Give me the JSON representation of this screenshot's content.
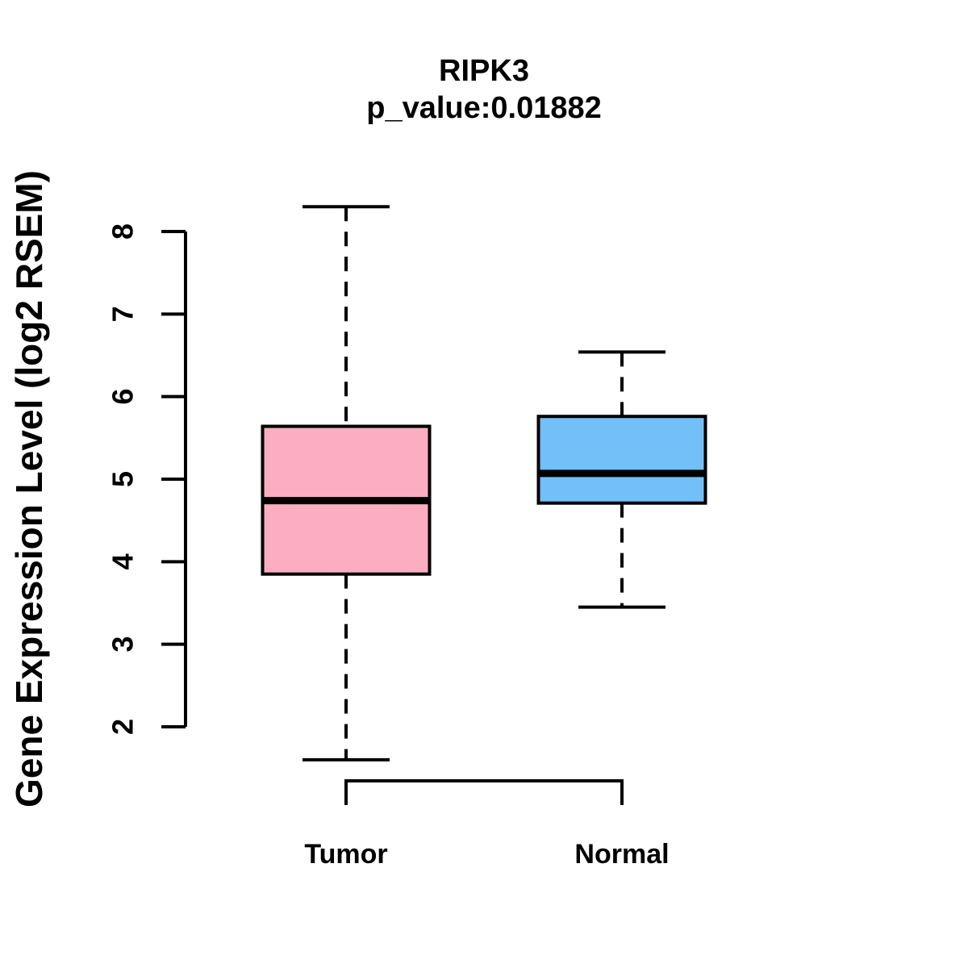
{
  "chart_data": {
    "type": "boxplot",
    "title": "RIPK3",
    "subtitle": "p_value:0.01882",
    "ylabel": "Gene Expression Level (log2 RSEM)",
    "xlabel": "",
    "y_ticks": [
      2,
      3,
      4,
      5,
      6,
      7,
      8
    ],
    "ylim": [
      2,
      8
    ],
    "grid": "off",
    "axis_color": "#000000",
    "groups": [
      {
        "label": "Tumor",
        "fill": "#FCADC1",
        "lower_whisker": 1.6,
        "q1": 3.85,
        "median": 4.74,
        "q3": 5.64,
        "upper_whisker": 8.3
      },
      {
        "label": "Normal",
        "fill": "#73BFF8",
        "lower_whisker": 3.45,
        "q1": 4.71,
        "median": 5.07,
        "q3": 5.76,
        "upper_whisker": 6.54
      }
    ]
  }
}
